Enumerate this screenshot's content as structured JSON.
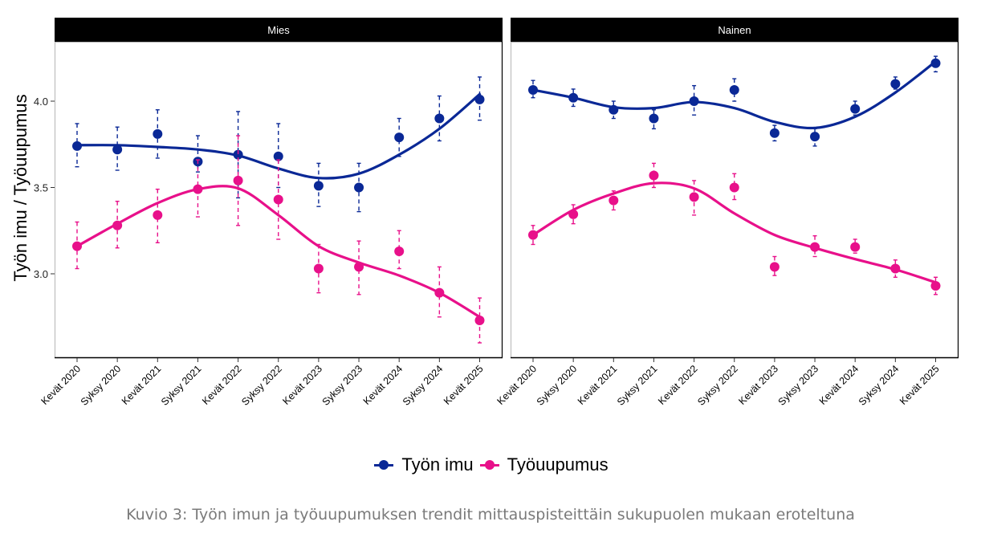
{
  "chart_data": {
    "type": "line",
    "ylabel": "Työn imu / Työuupumus",
    "xlabel": "",
    "ylim": [
      2.52,
      4.36
    ],
    "yticks": [
      "3.0",
      "3.5",
      "4.0"
    ],
    "ytick_values": [
      3.0,
      3.5,
      4.0
    ],
    "grid": false,
    "legend_position": "bottom",
    "categories": [
      "Kevät 2020",
      "Syksy 2020",
      "Kevät 2021",
      "Syksy 2021",
      "Kevät 2022",
      "Syksy 2022",
      "Kevät 2023",
      "Syksy 2023",
      "Kevät 2024",
      "Syksy 2024",
      "Kevät 2025"
    ],
    "panels": [
      {
        "title": "Mies",
        "series": [
          {
            "name": "Työn imu",
            "color": "#0a2896",
            "values": [
              3.74,
              3.72,
              3.81,
              3.65,
              3.69,
              3.68,
              3.51,
              3.5,
              3.79,
              3.9,
              4.01
            ],
            "ci_low": [
              3.62,
              3.6,
              3.67,
              3.59,
              3.44,
              3.5,
              3.39,
              3.36,
              3.68,
              3.77,
              3.89
            ],
            "ci_high": [
              3.87,
              3.85,
              3.95,
              3.8,
              3.94,
              3.87,
              3.64,
              3.64,
              3.9,
              4.03,
              4.14
            ],
            "trend": [
              3.745,
              3.745,
              3.735,
              3.72,
              3.685,
              3.61,
              3.555,
              3.58,
              3.69,
              3.84,
              4.04
            ]
          },
          {
            "name": "Työuupumus",
            "color": "#e8108a",
            "values": [
              3.16,
              3.28,
              3.34,
              3.49,
              3.54,
              3.43,
              3.03,
              3.04,
              3.13,
              2.89,
              2.73
            ],
            "ci_low": [
              3.03,
              3.15,
              3.18,
              3.33,
              3.28,
              3.2,
              2.89,
              2.88,
              3.03,
              2.75,
              2.6
            ],
            "ci_high": [
              3.3,
              3.42,
              3.49,
              3.66,
              3.8,
              3.66,
              3.17,
              3.19,
              3.25,
              3.04,
              2.86
            ],
            "trend": [
              3.16,
              3.29,
              3.41,
              3.49,
              3.495,
              3.34,
              3.16,
              3.065,
              2.99,
              2.89,
              2.75
            ]
          }
        ]
      },
      {
        "title": "Nainen",
        "series": [
          {
            "name": "Työn imu",
            "color": "#0a2896",
            "values": [
              4.065,
              4.02,
              3.95,
              3.9,
              4.0,
              4.065,
              3.815,
              3.795,
              3.955,
              4.1,
              4.22
            ],
            "ci_low": [
              4.02,
              3.97,
              3.9,
              3.84,
              3.92,
              4.0,
              3.77,
              3.74,
              3.92,
              4.07,
              4.17
            ],
            "ci_high": [
              4.12,
              4.07,
              4.0,
              3.95,
              4.09,
              4.13,
              3.86,
              3.84,
              4.0,
              4.14,
              4.26
            ],
            "trend": [
              4.065,
              4.02,
              3.965,
              3.96,
              3.995,
              3.96,
              3.88,
              3.845,
              3.91,
              4.05,
              4.23
            ]
          },
          {
            "name": "Työuupumus",
            "color": "#e8108a",
            "values": [
              3.225,
              3.345,
              3.425,
              3.57,
              3.445,
              3.5,
              3.04,
              3.155,
              3.155,
              3.03,
              2.93
            ],
            "ci_low": [
              3.17,
              3.29,
              3.37,
              3.5,
              3.34,
              3.43,
              2.99,
              3.1,
              3.12,
              2.98,
              2.88
            ],
            "ci_high": [
              3.28,
              3.4,
              3.48,
              3.64,
              3.54,
              3.58,
              3.1,
              3.22,
              3.2,
              3.08,
              2.98
            ],
            "trend": [
              3.225,
              3.37,
              3.465,
              3.525,
              3.495,
              3.35,
              3.225,
              3.15,
              3.085,
              3.025,
              2.95
            ]
          }
        ]
      }
    ]
  },
  "legend": {
    "items": [
      {
        "label": "Työn imu",
        "color": "#0a2896"
      },
      {
        "label": "Työuupumus",
        "color": "#e8108a"
      }
    ]
  },
  "caption": "Kuvio 3: Työn imun ja työuupumuksen trendit mittauspisteittäin sukupuolen mukaan eroteltuna"
}
